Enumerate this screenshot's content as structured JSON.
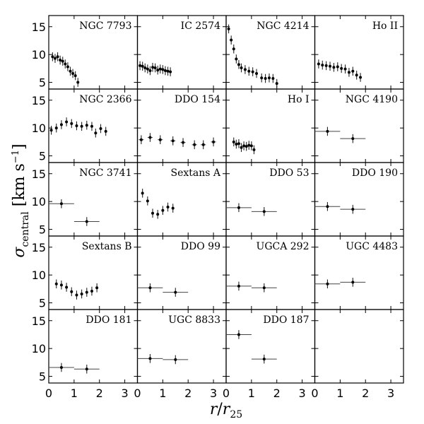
{
  "chart_data": {
    "type": "scatter",
    "grid": false,
    "xlabel": "r / r25",
    "ylabel": "σ central [km s^-1]",
    "xlim": [
      0,
      3.5
    ],
    "ylim": [
      3.8,
      17.0
    ],
    "x_ticks": [
      0,
      1,
      2,
      3
    ],
    "y_ticks": [
      5,
      10,
      15
    ],
    "panels": [
      {
        "name": "NGC 7793",
        "points": [
          {
            "x": 0.15,
            "y": 9.6,
            "xerr": 0.05,
            "yerr": 0.8
          },
          {
            "x": 0.25,
            "y": 9.3,
            "xerr": 0.05,
            "yerr": 0.8
          },
          {
            "x": 0.35,
            "y": 9.6,
            "xerr": 0.05,
            "yerr": 0.8
          },
          {
            "x": 0.45,
            "y": 9.0,
            "xerr": 0.05,
            "yerr": 0.8
          },
          {
            "x": 0.55,
            "y": 8.8,
            "xerr": 0.05,
            "yerr": 0.8
          },
          {
            "x": 0.65,
            "y": 8.3,
            "xerr": 0.05,
            "yerr": 0.8
          },
          {
            "x": 0.75,
            "y": 7.8,
            "xerr": 0.05,
            "yerr": 0.8
          },
          {
            "x": 0.85,
            "y": 7.0,
            "xerr": 0.05,
            "yerr": 0.8
          },
          {
            "x": 0.95,
            "y": 6.6,
            "xerr": 0.05,
            "yerr": 0.8
          },
          {
            "x": 1.05,
            "y": 6.2,
            "xerr": 0.05,
            "yerr": 0.8
          },
          {
            "x": 1.15,
            "y": 5.0,
            "xerr": 0.05,
            "yerr": 0.8
          }
        ]
      },
      {
        "name": "IC 2574",
        "points": [
          {
            "x": 0.1,
            "y": 8.0,
            "xerr": 0.05,
            "yerr": 0.8
          },
          {
            "x": 0.2,
            "y": 7.9,
            "xerr": 0.05,
            "yerr": 0.8
          },
          {
            "x": 0.3,
            "y": 7.6,
            "xerr": 0.05,
            "yerr": 0.8
          },
          {
            "x": 0.4,
            "y": 7.4,
            "xerr": 0.05,
            "yerr": 0.8
          },
          {
            "x": 0.5,
            "y": 7.1,
            "xerr": 0.05,
            "yerr": 0.8
          },
          {
            "x": 0.6,
            "y": 7.7,
            "xerr": 0.05,
            "yerr": 0.8
          },
          {
            "x": 0.7,
            "y": 7.6,
            "xerr": 0.05,
            "yerr": 0.8
          },
          {
            "x": 0.8,
            "y": 7.2,
            "xerr": 0.05,
            "yerr": 0.8
          },
          {
            "x": 0.9,
            "y": 7.4,
            "xerr": 0.05,
            "yerr": 0.8
          },
          {
            "x": 1.0,
            "y": 7.3,
            "xerr": 0.05,
            "yerr": 0.8
          },
          {
            "x": 1.1,
            "y": 7.1,
            "xerr": 0.05,
            "yerr": 0.8
          },
          {
            "x": 1.2,
            "y": 7.0,
            "xerr": 0.05,
            "yerr": 0.8
          },
          {
            "x": 1.3,
            "y": 6.9,
            "xerr": 0.05,
            "yerr": 0.8
          }
        ]
      },
      {
        "name": "NGC 4214",
        "points": [
          {
            "x": 0.1,
            "y": 14.6,
            "xerr": 0.05,
            "yerr": 0.8
          },
          {
            "x": 0.2,
            "y": 12.6,
            "xerr": 0.05,
            "yerr": 0.8
          },
          {
            "x": 0.3,
            "y": 11.0,
            "xerr": 0.05,
            "yerr": 0.8
          },
          {
            "x": 0.4,
            "y": 9.2,
            "xerr": 0.05,
            "yerr": 0.8
          },
          {
            "x": 0.5,
            "y": 8.2,
            "xerr": 0.05,
            "yerr": 0.8
          },
          {
            "x": 0.6,
            "y": 7.6,
            "xerr": 0.05,
            "yerr": 0.8
          },
          {
            "x": 0.75,
            "y": 7.3,
            "xerr": 0.05,
            "yerr": 0.8
          },
          {
            "x": 0.9,
            "y": 7.0,
            "xerr": 0.05,
            "yerr": 0.8
          },
          {
            "x": 1.05,
            "y": 6.9,
            "xerr": 0.05,
            "yerr": 0.8
          },
          {
            "x": 1.2,
            "y": 6.6,
            "xerr": 0.05,
            "yerr": 0.8
          },
          {
            "x": 1.4,
            "y": 5.8,
            "xerr": 0.05,
            "yerr": 0.8
          },
          {
            "x": 1.55,
            "y": 5.7,
            "xerr": 0.05,
            "yerr": 0.8
          },
          {
            "x": 1.7,
            "y": 5.8,
            "xerr": 0.05,
            "yerr": 0.8
          },
          {
            "x": 1.85,
            "y": 5.7,
            "xerr": 0.05,
            "yerr": 0.8
          },
          {
            "x": 2.0,
            "y": 4.8,
            "xerr": 0.05,
            "yerr": 0.8
          }
        ]
      },
      {
        "name": "Ho II",
        "points": [
          {
            "x": 0.15,
            "y": 8.3,
            "xerr": 0.05,
            "yerr": 0.8
          },
          {
            "x": 0.3,
            "y": 8.1,
            "xerr": 0.05,
            "yerr": 0.8
          },
          {
            "x": 0.45,
            "y": 8.0,
            "xerr": 0.05,
            "yerr": 0.8
          },
          {
            "x": 0.6,
            "y": 7.9,
            "xerr": 0.05,
            "yerr": 0.8
          },
          {
            "x": 0.75,
            "y": 7.7,
            "xerr": 0.05,
            "yerr": 0.8
          },
          {
            "x": 0.9,
            "y": 7.8,
            "xerr": 0.05,
            "yerr": 0.8
          },
          {
            "x": 1.05,
            "y": 7.5,
            "xerr": 0.05,
            "yerr": 0.8
          },
          {
            "x": 1.2,
            "y": 7.4,
            "xerr": 0.05,
            "yerr": 0.8
          },
          {
            "x": 1.35,
            "y": 6.8,
            "xerr": 0.05,
            "yerr": 0.8
          },
          {
            "x": 1.5,
            "y": 7.0,
            "xerr": 0.05,
            "yerr": 0.8
          },
          {
            "x": 1.65,
            "y": 6.3,
            "xerr": 0.05,
            "yerr": 0.8
          },
          {
            "x": 1.8,
            "y": 5.9,
            "xerr": 0.05,
            "yerr": 0.8
          }
        ]
      },
      {
        "name": "NGC 2366",
        "points": [
          {
            "x": 0.1,
            "y": 9.6,
            "xerr": 0.05,
            "yerr": 0.8
          },
          {
            "x": 0.3,
            "y": 10.0,
            "xerr": 0.05,
            "yerr": 0.8
          },
          {
            "x": 0.5,
            "y": 10.6,
            "xerr": 0.05,
            "yerr": 0.8
          },
          {
            "x": 0.7,
            "y": 11.1,
            "xerr": 0.05,
            "yerr": 0.8
          },
          {
            "x": 0.9,
            "y": 10.8,
            "xerr": 0.05,
            "yerr": 0.8
          },
          {
            "x": 1.1,
            "y": 10.4,
            "xerr": 0.05,
            "yerr": 0.8
          },
          {
            "x": 1.3,
            "y": 10.3,
            "xerr": 0.05,
            "yerr": 0.8
          },
          {
            "x": 1.5,
            "y": 10.5,
            "xerr": 0.05,
            "yerr": 0.8
          },
          {
            "x": 1.7,
            "y": 10.3,
            "xerr": 0.05,
            "yerr": 0.8
          },
          {
            "x": 1.85,
            "y": 9.1,
            "xerr": 0.05,
            "yerr": 0.8
          },
          {
            "x": 2.05,
            "y": 9.9,
            "xerr": 0.05,
            "yerr": 0.8
          },
          {
            "x": 2.25,
            "y": 9.4,
            "xerr": 0.05,
            "yerr": 0.8
          }
        ]
      },
      {
        "name": "DDO 154",
        "points": [
          {
            "x": 0.15,
            "y": 7.9,
            "xerr": 0.1,
            "yerr": 0.8
          },
          {
            "x": 0.5,
            "y": 8.3,
            "xerr": 0.1,
            "yerr": 0.8
          },
          {
            "x": 0.9,
            "y": 7.9,
            "xerr": 0.1,
            "yerr": 0.8
          },
          {
            "x": 1.4,
            "y": 7.7,
            "xerr": 0.1,
            "yerr": 0.8
          },
          {
            "x": 1.8,
            "y": 7.4,
            "xerr": 0.1,
            "yerr": 0.8
          },
          {
            "x": 2.25,
            "y": 7.0,
            "xerr": 0.1,
            "yerr": 0.8
          },
          {
            "x": 2.6,
            "y": 7.0,
            "xerr": 0.1,
            "yerr": 0.8
          },
          {
            "x": 3.0,
            "y": 7.5,
            "xerr": 0.1,
            "yerr": 0.8
          }
        ]
      },
      {
        "name": "Ho I",
        "points": [
          {
            "x": 0.3,
            "y": 7.5,
            "xerr": 0.05,
            "yerr": 0.8
          },
          {
            "x": 0.4,
            "y": 7.1,
            "xerr": 0.05,
            "yerr": 0.8
          },
          {
            "x": 0.5,
            "y": 7.2,
            "xerr": 0.05,
            "yerr": 0.8
          },
          {
            "x": 0.6,
            "y": 6.5,
            "xerr": 0.05,
            "yerr": 0.8
          },
          {
            "x": 0.7,
            "y": 6.8,
            "xerr": 0.05,
            "yerr": 0.8
          },
          {
            "x": 0.8,
            "y": 6.7,
            "xerr": 0.05,
            "yerr": 0.8
          },
          {
            "x": 0.9,
            "y": 6.9,
            "xerr": 0.05,
            "yerr": 0.8
          },
          {
            "x": 1.0,
            "y": 6.8,
            "xerr": 0.05,
            "yerr": 0.8
          },
          {
            "x": 1.1,
            "y": 6.1,
            "xerr": 0.05,
            "yerr": 0.8
          }
        ]
      },
      {
        "name": "NGC 4190",
        "points": [
          {
            "x": 0.5,
            "y": 9.4,
            "xerr": 0.5,
            "yerr": 0.8
          },
          {
            "x": 1.5,
            "y": 8.1,
            "xerr": 0.5,
            "yerr": 0.8
          }
        ]
      },
      {
        "name": "NGC 3741",
        "points": [
          {
            "x": 0.5,
            "y": 9.6,
            "xerr": 0.5,
            "yerr": 0.8
          },
          {
            "x": 1.5,
            "y": 6.4,
            "xerr": 0.5,
            "yerr": 0.8
          }
        ]
      },
      {
        "name": "Sextans A",
        "points": [
          {
            "x": 0.2,
            "y": 11.5,
            "xerr": 0.05,
            "yerr": 0.8
          },
          {
            "x": 0.4,
            "y": 10.1,
            "xerr": 0.05,
            "yerr": 0.8
          },
          {
            "x": 0.6,
            "y": 7.9,
            "xerr": 0.05,
            "yerr": 0.8
          },
          {
            "x": 0.8,
            "y": 7.7,
            "xerr": 0.05,
            "yerr": 0.8
          },
          {
            "x": 1.0,
            "y": 8.4,
            "xerr": 0.05,
            "yerr": 0.8
          },
          {
            "x": 1.2,
            "y": 9.0,
            "xerr": 0.05,
            "yerr": 0.8
          },
          {
            "x": 1.4,
            "y": 8.8,
            "xerr": 0.05,
            "yerr": 0.8
          }
        ]
      },
      {
        "name": "DDO 53",
        "points": [
          {
            "x": 0.5,
            "y": 8.9,
            "xerr": 0.5,
            "yerr": 0.8
          },
          {
            "x": 1.5,
            "y": 8.2,
            "xerr": 0.5,
            "yerr": 0.8
          }
        ]
      },
      {
        "name": "DDO 190",
        "points": [
          {
            "x": 0.5,
            "y": 9.1,
            "xerr": 0.5,
            "yerr": 0.8
          },
          {
            "x": 1.5,
            "y": 8.6,
            "xerr": 0.5,
            "yerr": 0.8
          }
        ]
      },
      {
        "name": "Sextans B",
        "points": [
          {
            "x": 0.3,
            "y": 8.4,
            "xerr": 0.05,
            "yerr": 0.8
          },
          {
            "x": 0.5,
            "y": 8.2,
            "xerr": 0.05,
            "yerr": 0.8
          },
          {
            "x": 0.7,
            "y": 7.8,
            "xerr": 0.05,
            "yerr": 0.8
          },
          {
            "x": 0.9,
            "y": 7.0,
            "xerr": 0.05,
            "yerr": 0.8
          },
          {
            "x": 1.1,
            "y": 6.4,
            "xerr": 0.05,
            "yerr": 0.8
          },
          {
            "x": 1.3,
            "y": 6.6,
            "xerr": 0.05,
            "yerr": 0.8
          },
          {
            "x": 1.5,
            "y": 6.9,
            "xerr": 0.05,
            "yerr": 0.8
          },
          {
            "x": 1.7,
            "y": 7.1,
            "xerr": 0.05,
            "yerr": 0.8
          },
          {
            "x": 1.9,
            "y": 7.7,
            "xerr": 0.05,
            "yerr": 0.8
          }
        ]
      },
      {
        "name": "DDO 99",
        "points": [
          {
            "x": 0.5,
            "y": 7.7,
            "xerr": 0.5,
            "yerr": 0.8
          },
          {
            "x": 1.5,
            "y": 6.9,
            "xerr": 0.5,
            "yerr": 0.8
          }
        ]
      },
      {
        "name": "UGCA 292",
        "points": [
          {
            "x": 0.5,
            "y": 8.0,
            "xerr": 0.5,
            "yerr": 0.8
          },
          {
            "x": 1.5,
            "y": 7.7,
            "xerr": 0.5,
            "yerr": 0.8
          }
        ]
      },
      {
        "name": "UGC 4483",
        "points": [
          {
            "x": 0.5,
            "y": 8.4,
            "xerr": 0.5,
            "yerr": 0.8
          },
          {
            "x": 1.5,
            "y": 8.7,
            "xerr": 0.5,
            "yerr": 0.8
          }
        ]
      },
      {
        "name": "DDO 181",
        "points": [
          {
            "x": 0.5,
            "y": 6.6,
            "xerr": 0.5,
            "yerr": 0.8
          },
          {
            "x": 1.5,
            "y": 6.3,
            "xerr": 0.5,
            "yerr": 0.8
          }
        ]
      },
      {
        "name": "UGC 8833",
        "points": [
          {
            "x": 0.5,
            "y": 8.2,
            "xerr": 0.5,
            "yerr": 0.8
          },
          {
            "x": 1.5,
            "y": 8.0,
            "xerr": 0.5,
            "yerr": 0.8
          }
        ]
      },
      {
        "name": "DDO 187",
        "points": [
          {
            "x": 0.5,
            "y": 12.5,
            "xerr": 0.5,
            "yerr": 0.8
          },
          {
            "x": 1.5,
            "y": 8.1,
            "xerr": 0.5,
            "yerr": 0.8
          }
        ]
      },
      {
        "name": "",
        "points": []
      }
    ]
  }
}
